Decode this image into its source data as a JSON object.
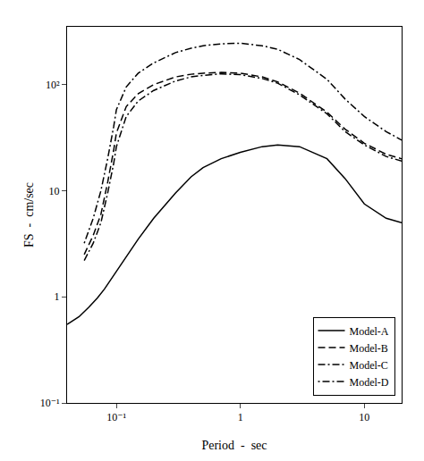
{
  "chart_data": {
    "type": "line",
    "xlabel": "Period  -  sec",
    "ylabel": "FS  -  cm/sec",
    "log": true,
    "xlim": [
      0.04,
      20
    ],
    "ylim": [
      0.1,
      350
    ],
    "xticks": [
      {
        "value": 0.1,
        "label": "10⁻¹"
      },
      1,
      10
    ],
    "yticks": [
      {
        "value": 0.1,
        "label": "10⁻¹"
      },
      1,
      10,
      {
        "value": 100,
        "label": "10²"
      }
    ],
    "grid": false,
    "legend": "lower right",
    "series": [
      {
        "name": "Model-A",
        "color": "#000000",
        "line_style": "solid",
        "x": [
          0.04,
          0.05,
          0.06,
          0.07,
          0.08,
          0.09,
          0.1,
          0.12,
          0.15,
          0.2,
          0.3,
          0.4,
          0.5,
          0.7,
          1.0,
          1.5,
          2.0,
          3.0,
          5.0,
          7.0,
          10.0,
          15.0,
          20.0
        ],
        "values": [
          0.55,
          0.65,
          0.8,
          0.97,
          1.18,
          1.45,
          1.75,
          2.4,
          3.5,
          5.5,
          9.5,
          13.5,
          16.5,
          20.0,
          23.0,
          26.0,
          27.0,
          26.0,
          20.0,
          13.0,
          7.5,
          5.5,
          5.0
        ]
      },
      {
        "name": "Model-B",
        "color": "#000000",
        "line_style": "dash",
        "x": [
          0.055,
          0.065,
          0.075,
          0.085,
          0.095,
          0.1,
          0.12,
          0.15,
          0.2,
          0.3,
          0.4,
          0.5,
          0.7,
          1.0,
          1.5,
          2.0,
          3.0,
          5.0,
          7.0,
          10.0,
          15.0,
          20.0
        ],
        "values": [
          2.5,
          3.8,
          6.0,
          12.0,
          24.0,
          35.0,
          62.0,
          82.0,
          100.0,
          118.0,
          125.0,
          128.0,
          130.0,
          128.0,
          118.0,
          106.0,
          83.0,
          55.0,
          38.0,
          28.0,
          22.0,
          20.0
        ]
      },
      {
        "name": "Model-C",
        "color": "#000000",
        "line_style": "dashdot",
        "x": [
          0.055,
          0.065,
          0.075,
          0.085,
          0.095,
          0.1,
          0.12,
          0.15,
          0.2,
          0.3,
          0.4,
          0.5,
          0.7,
          1.0,
          1.5,
          2.0,
          3.0,
          5.0,
          7.0,
          10.0,
          15.0,
          20.0
        ],
        "values": [
          2.2,
          3.2,
          5.0,
          9.5,
          18.0,
          26.0,
          50.0,
          70.0,
          88.0,
          108.0,
          118.0,
          122.0,
          126.0,
          124.0,
          114.0,
          103.0,
          80.0,
          53.0,
          36.0,
          27.0,
          21.0,
          19.0
        ]
      },
      {
        "name": "Model-D",
        "color": "#000000",
        "line_style": "dotdash",
        "x": [
          0.055,
          0.065,
          0.075,
          0.085,
          0.095,
          0.1,
          0.12,
          0.15,
          0.2,
          0.3,
          0.4,
          0.5,
          0.7,
          1.0,
          1.5,
          2.0,
          3.0,
          5.0,
          7.0,
          10.0,
          15.0,
          20.0
        ],
        "values": [
          3.2,
          5.5,
          10.0,
          20.0,
          40.0,
          58.0,
          95.0,
          128.0,
          160.0,
          200.0,
          220.0,
          232.0,
          242.0,
          245.0,
          232.0,
          215.0,
          172.0,
          112.0,
          73.0,
          50.0,
          36.0,
          30.0
        ]
      }
    ]
  }
}
